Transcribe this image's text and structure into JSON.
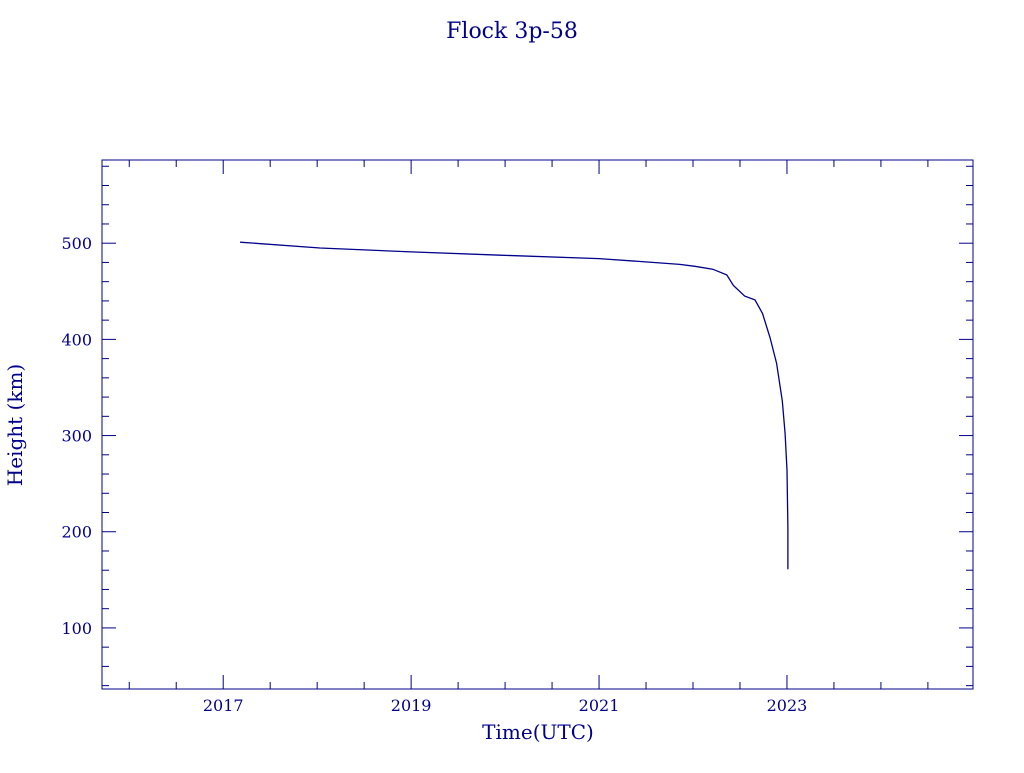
{
  "chart_data": {
    "type": "line",
    "title": "Flock 3p-58",
    "xlabel": "Time(UTC)",
    "ylabel": "Height (km)",
    "xlim": [
      2015.71,
      2024.98
    ],
    "ylim": [
      36.5,
      586.5
    ],
    "x_ticks": [
      2017,
      2019,
      2021,
      2023
    ],
    "x_tick_labels": [
      "2017",
      "2019",
      "2021",
      "2023"
    ],
    "x_minor_step": 0.5,
    "y_ticks": [
      100,
      200,
      300,
      400,
      500
    ],
    "y_tick_labels": [
      "100",
      "200",
      "300",
      "400",
      "500"
    ],
    "y_minor_step": 20,
    "grid": false,
    "color": "#00008b",
    "series": [
      {
        "x": [
          2017.18,
          2018.03,
          2019.0,
          2019.95,
          2021.0,
          2021.44,
          2021.86,
          2022.02,
          2022.21,
          2022.36,
          2022.43,
          2022.55,
          2022.66,
          2022.74,
          2022.82,
          2022.89,
          2022.95,
          2022.98,
          2023.0,
          2023.01,
          2023.01
        ],
        "y": [
          501,
          495,
          491,
          487.5,
          484,
          481,
          478,
          476,
          473,
          467,
          456,
          445,
          441,
          427,
          402,
          375,
          336,
          302,
          264,
          204,
          161
        ]
      }
    ]
  }
}
